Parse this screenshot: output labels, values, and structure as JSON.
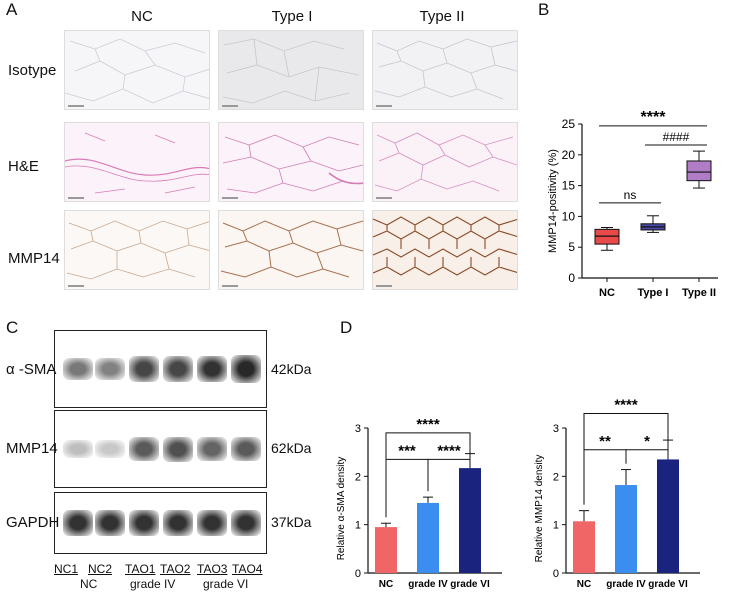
{
  "panels": {
    "a": "A",
    "b": "B",
    "c": "C",
    "d": "D"
  },
  "histology": {
    "columns": [
      "NC",
      "Type I",
      "Type  II"
    ],
    "rows": [
      "Isotype",
      "H&E",
      "MMP14"
    ]
  },
  "blots": {
    "proteins": [
      {
        "name": "α -SMA",
        "kda": "42kDa",
        "intensities": [
          0.55,
          0.5,
          0.8,
          0.8,
          0.9,
          0.95
        ]
      },
      {
        "name": "MMP14",
        "kda": "62kDa",
        "intensities": [
          0.2,
          0.15,
          0.7,
          0.75,
          0.65,
          0.7
        ]
      },
      {
        "name": "GAPDH",
        "kda": "37kDa",
        "intensities": [
          0.9,
          0.9,
          0.9,
          0.9,
          0.9,
          0.9
        ]
      }
    ],
    "lanes": [
      "NC1",
      "NC2",
      "TAO1",
      "TAO2",
      "TAO3",
      "TAO4"
    ],
    "groups": [
      "NC",
      "grade IV",
      "grade VI"
    ]
  },
  "chart_data": [
    {
      "type": "box",
      "categories": [
        "NC",
        "Type I",
        "Type II"
      ],
      "ylabel": "MMP14-positivity  (%)",
      "ylim": [
        0,
        25
      ],
      "yticks": [
        0,
        5,
        10,
        15,
        20,
        25
      ],
      "boxes": [
        {
          "min": 4.5,
          "q1": 5.5,
          "median": 6.8,
          "q3": 7.9,
          "max": 8.2,
          "color": "#e84a4a"
        },
        {
          "min": 7.4,
          "q1": 7.8,
          "median": 8.3,
          "q3": 8.8,
          "max": 10.1,
          "color": "#4a4aa8"
        },
        {
          "min": 14.6,
          "q1": 15.8,
          "median": 17.2,
          "q3": 19.0,
          "max": 20.6,
          "color": "#b07cc6"
        }
      ],
      "annotations": [
        {
          "text": "ns",
          "from": 0,
          "to": 1,
          "y": 12.2
        },
        {
          "text": "####",
          "from": 1,
          "to": 2,
          "y": 21.6
        },
        {
          "text": "****",
          "from": 0,
          "to": 2,
          "y": 24.7
        }
      ]
    },
    {
      "type": "bar",
      "categories": [
        "NC",
        "grade IV",
        "grade VI"
      ],
      "values": [
        0.95,
        1.45,
        2.17
      ],
      "errors": [
        0.08,
        0.12,
        0.3
      ],
      "colors": [
        "#f06666",
        "#3b8ef0",
        "#1a237e"
      ],
      "ylabel": "Relative α-SMA density",
      "ylim": [
        0,
        3
      ],
      "yticks": [
        0,
        1,
        2,
        3
      ],
      "annotations": [
        {
          "text": "***",
          "from": 0,
          "to": 1,
          "y": 2.35
        },
        {
          "text": "****",
          "from": 1,
          "to": 2,
          "y": 2.35
        },
        {
          "text": "****",
          "from": 0,
          "to": 2,
          "y": 2.9
        }
      ]
    },
    {
      "type": "bar",
      "categories": [
        "NC",
        "grade IV",
        "grade VI"
      ],
      "values": [
        1.07,
        1.82,
        2.35
      ],
      "errors": [
        0.22,
        0.32,
        0.4
      ],
      "colors": [
        "#f06666",
        "#3b8ef0",
        "#1a237e"
      ],
      "ylabel": "Relative MMP14 density",
      "ylim": [
        0,
        3
      ],
      "yticks": [
        0,
        1,
        2,
        3
      ],
      "annotations": [
        {
          "text": "**",
          "from": 0,
          "to": 1,
          "y": 2.55
        },
        {
          "text": "*",
          "from": 1,
          "to": 2,
          "y": 2.55
        },
        {
          "text": "****",
          "from": 0,
          "to": 2,
          "y": 3.3
        }
      ]
    }
  ]
}
